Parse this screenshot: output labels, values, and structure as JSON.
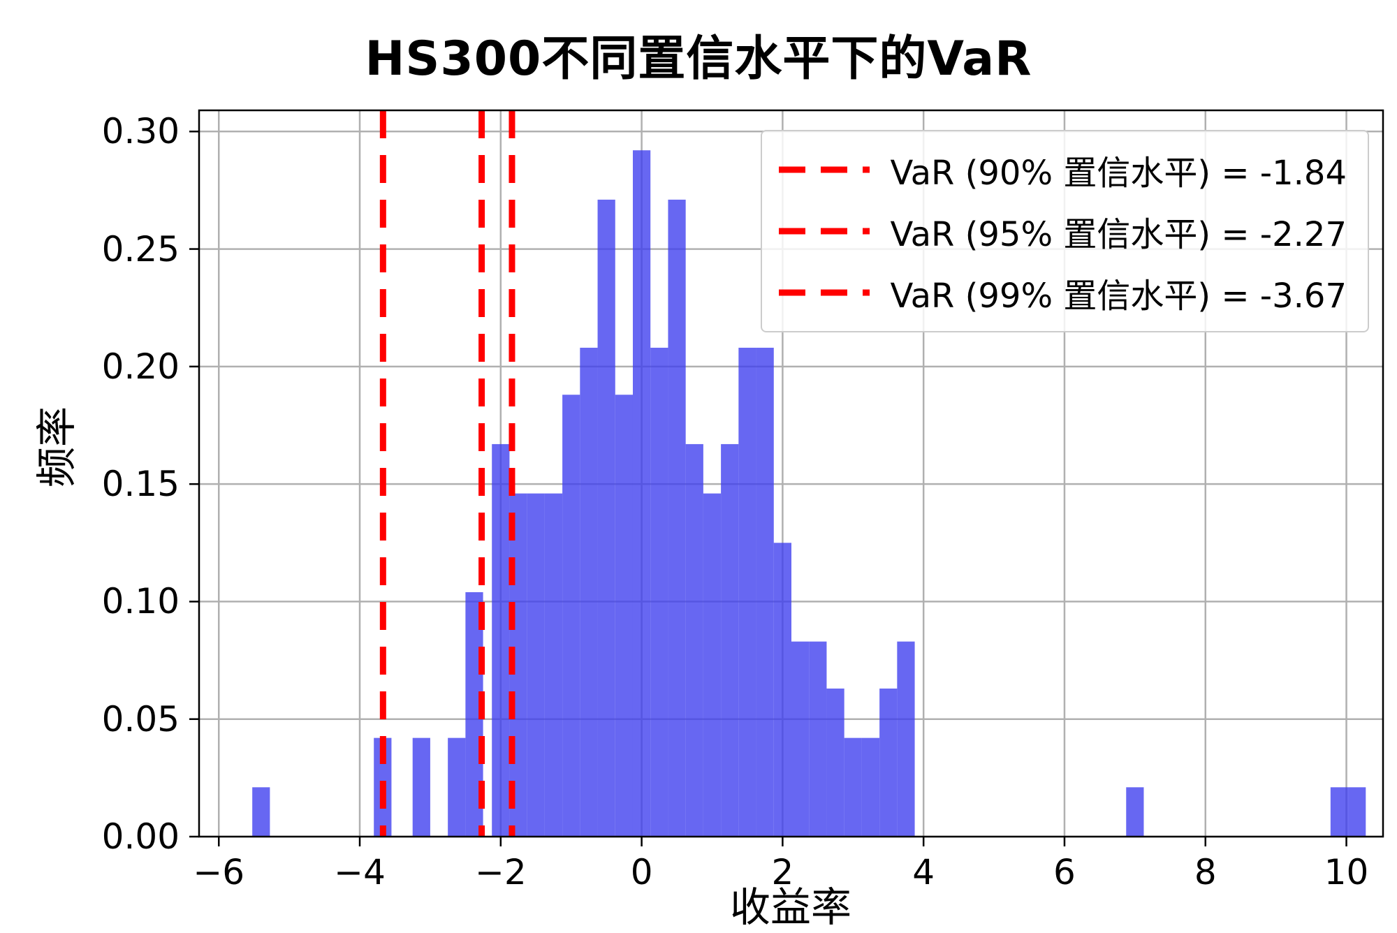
{
  "chart_data": {
    "type": "bar",
    "subtype": "histogram",
    "title": "HS300不同置信水平下的VaR",
    "xlabel": "收益率",
    "ylabel": "频率",
    "xlim": [
      -6.28,
      10.52
    ],
    "ylim": [
      0,
      0.309
    ],
    "grid": true,
    "x_ticks": {
      "values": [
        -6,
        -4,
        -2,
        0,
        2,
        4,
        6,
        8,
        10
      ],
      "labels": [
        "−6",
        "−4",
        "−2",
        "0",
        "2",
        "4",
        "6",
        "8",
        "10"
      ]
    },
    "y_ticks": {
      "values": [
        0.0,
        0.05,
        0.1,
        0.15,
        0.2,
        0.25,
        0.3
      ],
      "labels": [
        "0.00",
        "0.05",
        "0.10",
        "0.15",
        "0.20",
        "0.25",
        "0.30"
      ]
    },
    "bin_width": 0.25,
    "bars": [
      [
        -5.4,
        0.021
      ],
      [
        -3.675,
        0.042
      ],
      [
        -3.125,
        0.042
      ],
      [
        -2.625,
        0.042
      ],
      [
        -2.375,
        0.104
      ],
      [
        -2.0,
        0.167
      ],
      [
        -1.75,
        0.146
      ],
      [
        -1.5,
        0.146
      ],
      [
        -1.25,
        0.146
      ],
      [
        -1.0,
        0.188
      ],
      [
        -0.75,
        0.208
      ],
      [
        -0.5,
        0.271
      ],
      [
        -0.25,
        0.188
      ],
      [
        0.0,
        0.292
      ],
      [
        0.25,
        0.208
      ],
      [
        0.5,
        0.271
      ],
      [
        0.75,
        0.167
      ],
      [
        1.0,
        0.146
      ],
      [
        1.25,
        0.167
      ],
      [
        1.5,
        0.208
      ],
      [
        1.75,
        0.208
      ],
      [
        2.0,
        0.125
      ],
      [
        2.25,
        0.083
      ],
      [
        2.5,
        0.083
      ],
      [
        2.75,
        0.063
      ],
      [
        3.0,
        0.042
      ],
      [
        3.25,
        0.042
      ],
      [
        3.5,
        0.063
      ],
      [
        3.75,
        0.083
      ],
      [
        7.0,
        0.021
      ],
      [
        9.9,
        0.021
      ],
      [
        10.15,
        0.021
      ]
    ],
    "var_lines": [
      {
        "confidence": "90%",
        "value": -1.84
      },
      {
        "confidence": "95%",
        "value": -2.27
      },
      {
        "confidence": "99%",
        "value": -3.67
      }
    ],
    "legend": {
      "position": "upper right",
      "entries": [
        "VaR (90% 置信水平) = -1.84",
        "VaR (95% 置信水平) = -2.27",
        "VaR (99% 置信水平) = -3.67"
      ]
    },
    "colors": {
      "bar": "#3c3cee",
      "bar_opacity": 0.78,
      "var_line": "#ff0000",
      "grid": "#b0b0b0",
      "axes": "#000000"
    }
  }
}
